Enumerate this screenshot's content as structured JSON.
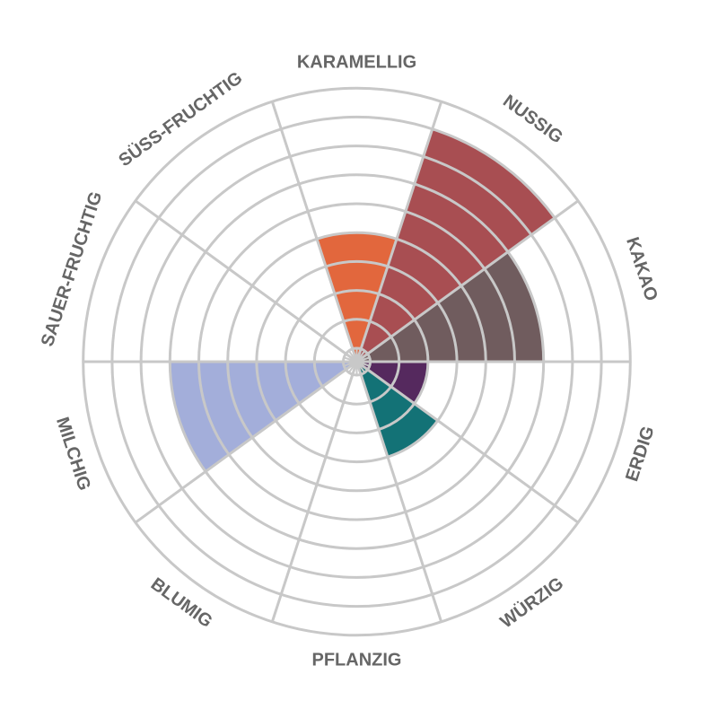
{
  "chart_data": {
    "type": "polar-area",
    "title": "",
    "categories": [
      "KARAMELLIG",
      "NUSSIG",
      "KAKAO",
      "ERDIG",
      "WÜRZIG",
      "PFLANZIG",
      "BLUMIG",
      "MILCHIG",
      "SAUER-FRUCHTIG",
      "SÜSS-FRUCHTIG"
    ],
    "values": [
      4,
      8,
      6,
      2,
      3,
      0,
      0,
      6,
      0,
      0
    ],
    "colors": [
      "#E2673D",
      "#A84E52",
      "#705C5E",
      "#55295E",
      "#137276",
      "#cccccc",
      "#cccccc",
      "#A3AEDA",
      "#cccccc",
      "#cccccc"
    ],
    "rlim": [
      0,
      9
    ],
    "grid": true,
    "grid_color": "#c8c8c8",
    "label_color": "#666666"
  }
}
